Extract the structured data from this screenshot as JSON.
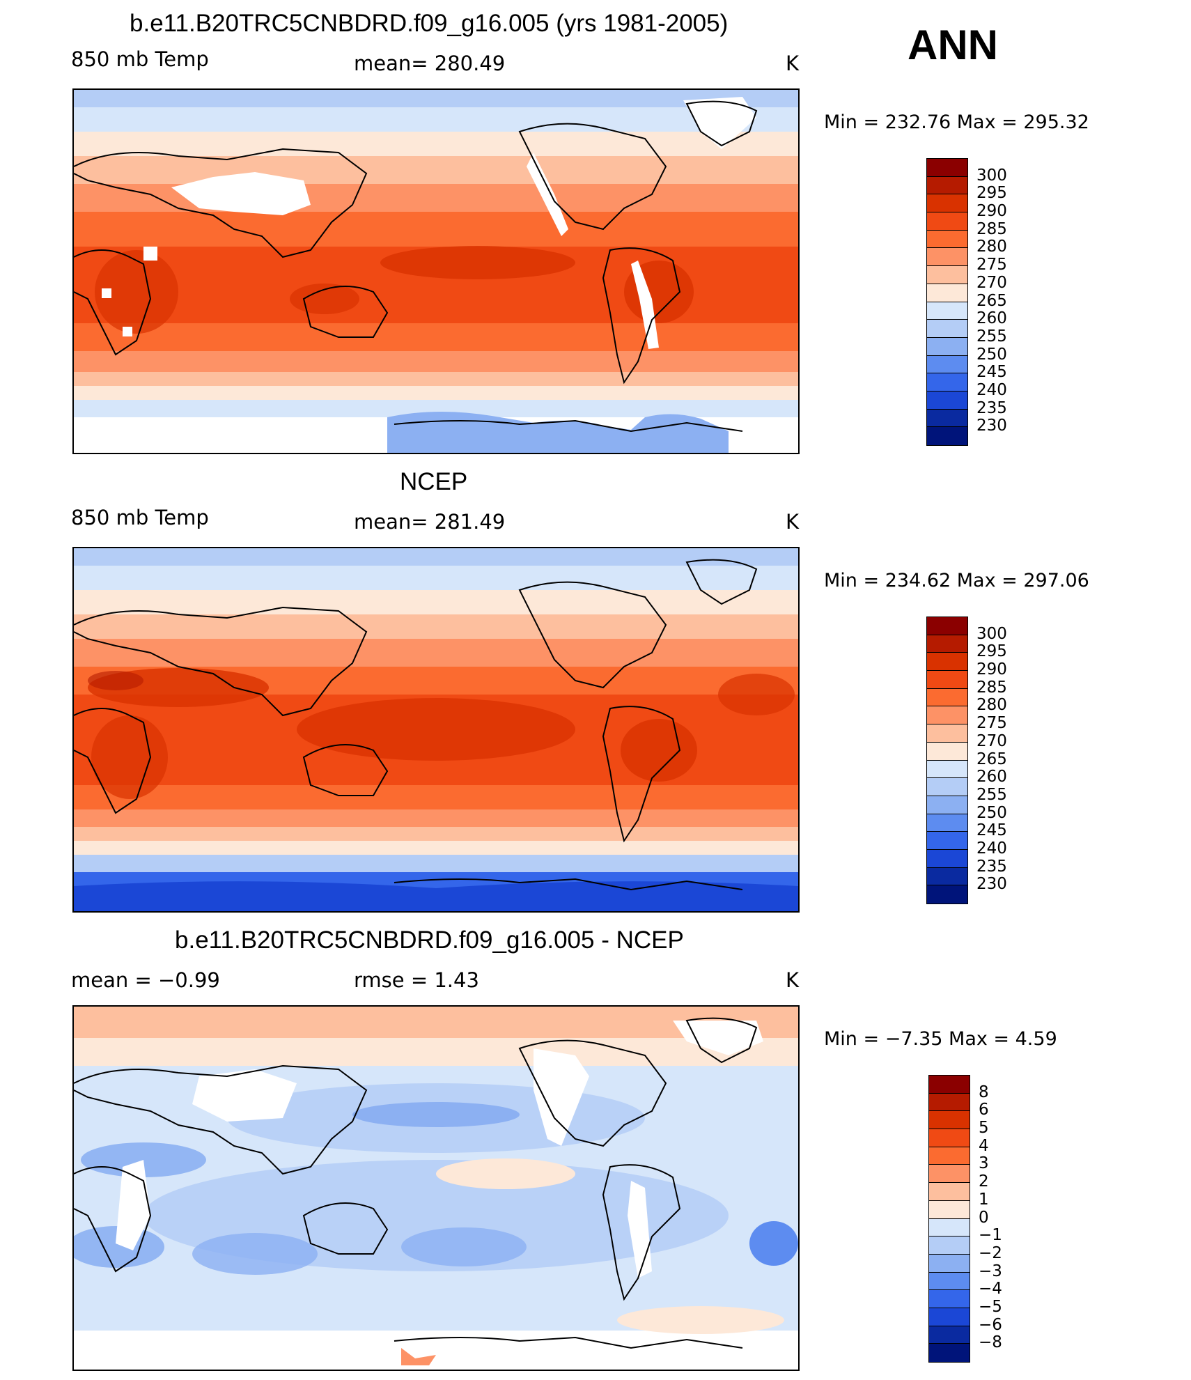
{
  "ann_label": "ANN",
  "unit": "K",
  "panels": [
    {
      "title": "b.e11.B20TRC5CNBDRD.f09_g16.005 (yrs 1981-2005)",
      "left_label": "850 mb Temp",
      "mid_label": "mean=  280.49",
      "right_label": "K",
      "minmax": "Min  =  232.76  Max  =  295.32",
      "levels": [
        "300",
        "295",
        "290",
        "285",
        "280",
        "275",
        "270",
        "265",
        "260",
        "255",
        "250",
        "245",
        "240",
        "235",
        "230"
      ],
      "colors": [
        "#8b0000",
        "#b51b00",
        "#d93200",
        "#f04a14",
        "#fb6b30",
        "#fd9266",
        "#fdbf9e",
        "#fde8d8",
        "#d6e6fa",
        "#b4cdf6",
        "#8cb0f2",
        "#5d8cf0",
        "#3466ea",
        "#1b47d6",
        "#0a2aa0",
        "#00147a"
      ]
    },
    {
      "title": "NCEP",
      "left_label": "850 mb Temp",
      "mid_label": "mean=  281.49",
      "right_label": "K",
      "minmax": "Min  =  234.62  Max  =  297.06",
      "levels": [
        "300",
        "295",
        "290",
        "285",
        "280",
        "275",
        "270",
        "265",
        "260",
        "255",
        "250",
        "245",
        "240",
        "235",
        "230"
      ],
      "colors": [
        "#8b0000",
        "#b51b00",
        "#d93200",
        "#f04a14",
        "#fb6b30",
        "#fd9266",
        "#fdbf9e",
        "#fde8d8",
        "#d6e6fa",
        "#b4cdf6",
        "#8cb0f2",
        "#5d8cf0",
        "#3466ea",
        "#1b47d6",
        "#0a2aa0",
        "#00147a"
      ]
    },
    {
      "title": "b.e11.B20TRC5CNBDRD.f09_g16.005 - NCEP",
      "left_label": "mean  =     −0.99",
      "mid_label": "rmse  =     1.43",
      "right_label": "K",
      "minmax": "Min  =     −7.35  Max  =      4.59",
      "levels": [
        "8",
        "6",
        "5",
        "4",
        "3",
        "2",
        "1",
        "0",
        "−1",
        "−2",
        "−3",
        "−4",
        "−5",
        "−6",
        "−8"
      ],
      "colors": [
        "#8b0000",
        "#b51b00",
        "#d93200",
        "#f04a14",
        "#fb6b30",
        "#fd9266",
        "#fdbf9e",
        "#fde8d8",
        "#d6e6fa",
        "#b4cdf6",
        "#8cb0f2",
        "#5d8cf0",
        "#3466ea",
        "#1b47d6",
        "#0a2aa0",
        "#00147a"
      ]
    }
  ]
}
